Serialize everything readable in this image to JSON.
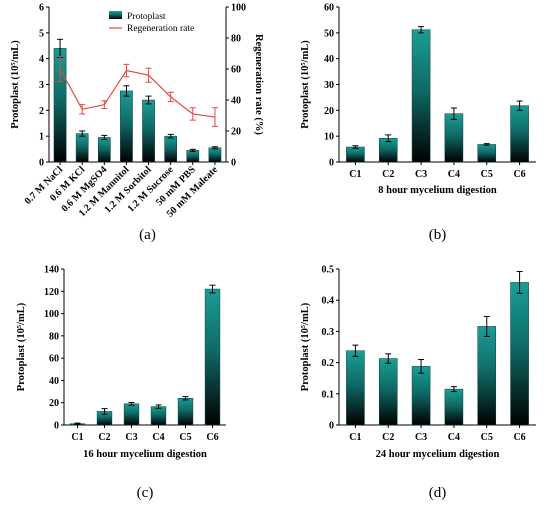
{
  "chart_data": [
    {
      "panel": "(a)",
      "type": "bar",
      "categories": [
        "0.7 M NaCl",
        "0.6 M KCl",
        "0.6 M MgSO4",
        "1.2 M Mannitol",
        "1.2 M Sorbitol",
        "1.2 M Sucrose",
        "50 mM PBS",
        "50 mM Maleate"
      ],
      "series": [
        {
          "name": "Protoplast",
          "type": "bar",
          "axis": "left",
          "values": [
            4.4,
            1.1,
            0.95,
            2.75,
            2.4,
            1.0,
            0.45,
            0.55
          ],
          "errors": [
            0.35,
            0.1,
            0.08,
            0.2,
            0.15,
            0.07,
            0.04,
            0.04
          ]
        },
        {
          "name": "Regeneration rate",
          "type": "line",
          "axis": "right",
          "values": [
            60,
            34,
            37,
            59,
            56,
            42,
            31,
            29
          ],
          "errors": [
            8,
            3,
            2.5,
            4,
            4.5,
            3,
            4,
            6
          ]
        }
      ],
      "ylabel": "Protoplast (10⁵/mL)",
      "y2label": "Regeneration rate (%)",
      "ylim": [
        0,
        6
      ],
      "yticks": [
        0,
        1,
        2,
        3,
        4,
        5,
        6
      ],
      "y2lim": [
        0,
        100
      ],
      "y2ticks": [
        0,
        20,
        40,
        60,
        80,
        100
      ],
      "xlabel": "",
      "legend": "top-right"
    },
    {
      "panel": "(b)",
      "type": "bar",
      "categories": [
        "C1",
        "C2",
        "C3",
        "C4",
        "C5",
        "C6"
      ],
      "values": [
        5.8,
        9.2,
        51.2,
        18.7,
        6.8,
        21.8
      ],
      "errors": [
        0.5,
        1.3,
        1.2,
        2.2,
        0.3,
        1.8
      ],
      "ylabel": "Protoplast (10⁵/mL)",
      "xlabel": "8 hour mycelium digestion",
      "ylim": [
        0,
        60
      ],
      "yticks": [
        0,
        10,
        20,
        30,
        40,
        50,
        60
      ]
    },
    {
      "panel": "(c)",
      "type": "bar",
      "categories": [
        "C1",
        "C2",
        "C3",
        "C4",
        "C5",
        "C6"
      ],
      "values": [
        1.2,
        12.2,
        19.0,
        16.5,
        24.0,
        122.0
      ],
      "errors": [
        0.5,
        2.5,
        1.2,
        1.5,
        1.5,
        3.5
      ],
      "ylabel": "Protoplast (10⁵/mL)",
      "xlabel": "16 hour mycelium digestion",
      "ylim": [
        0,
        140
      ],
      "yticks": [
        0,
        20,
        40,
        60,
        80,
        100,
        120,
        140
      ]
    },
    {
      "panel": "(d)",
      "type": "bar",
      "categories": [
        "C1",
        "C2",
        "C3",
        "C4",
        "C5",
        "C6"
      ],
      "values": [
        0.238,
        0.213,
        0.188,
        0.115,
        0.316,
        0.457
      ],
      "errors": [
        0.018,
        0.015,
        0.022,
        0.008,
        0.032,
        0.035
      ],
      "ylabel": "Protoplast (10⁵/mL)",
      "xlabel": "24 hour mycelium digestion",
      "ylim": [
        0,
        0.5
      ],
      "yticks": [
        0,
        0.1,
        0.2,
        0.3,
        0.4,
        0.5
      ]
    }
  ],
  "colors": {
    "bar_top": "#1a9e96",
    "bar_bottom": "#000000",
    "line": "#e8473f",
    "axis": "#000000"
  }
}
